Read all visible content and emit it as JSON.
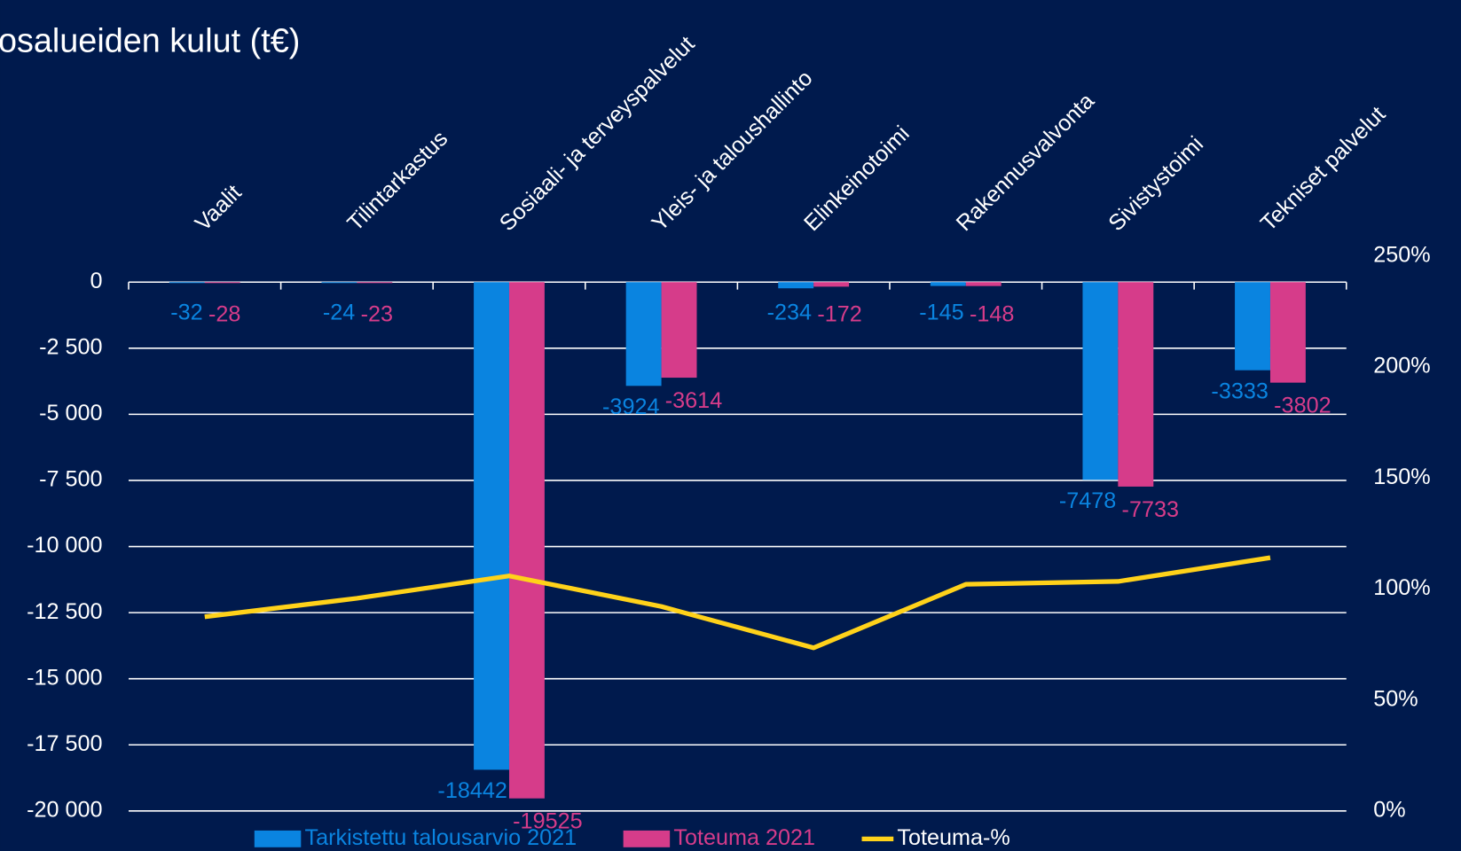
{
  "chart_data": {
    "type": "bar",
    "title": "osalueiden kulut (t€)",
    "categories": [
      "Vaalit",
      "Tilintarkastus",
      "Sosiaali- ja terveyspalvelut",
      "Yleis- ja taloushallinto",
      "Elinkeinotoimi",
      "Rakennusvalvonta",
      "Sivistystoimi",
      "Tekniset palvelut"
    ],
    "series": [
      {
        "name": "Tarkistettu talousarvio 2021",
        "color": "#0a84e0",
        "values": [
          -32,
          -24,
          -18442,
          -3924,
          -234,
          -145,
          -7478,
          -3333
        ]
      },
      {
        "name": "Toteuma 2021",
        "color": "#d63c8a",
        "values": [
          -28,
          -23,
          -19525,
          -3614,
          -172,
          -148,
          -7733,
          -3802
        ]
      },
      {
        "name": "Toteuma-%",
        "color": "#ffd21a",
        "type": "line",
        "axis": "y2",
        "values": [
          87.5,
          95.8,
          105.9,
          92.1,
          73.5,
          102.1,
          103.4,
          114.1
        ]
      }
    ],
    "ylim": [
      -20000,
      0
    ],
    "yticks": [
      {
        "value": 0,
        "label": "0"
      },
      {
        "value": -2500,
        "label": "-2 500"
      },
      {
        "value": -5000,
        "label": "-5 000"
      },
      {
        "value": -7500,
        "label": "-7 500"
      },
      {
        "value": -10000,
        "label": "-10 000"
      },
      {
        "value": -12500,
        "label": "-12 500"
      },
      {
        "value": -15000,
        "label": "-15 000"
      },
      {
        "value": -17500,
        "label": "-17 500"
      },
      {
        "value": -20000,
        "label": "-20 000"
      }
    ],
    "y2lim": [
      0,
      250
    ],
    "y2ticks": [
      {
        "value": 0,
        "label": "0%"
      },
      {
        "value": 50,
        "label": "50%"
      },
      {
        "value": 100,
        "label": "100%"
      },
      {
        "value": 150,
        "label": "150%"
      },
      {
        "value": 200,
        "label": "200%"
      },
      {
        "value": 250,
        "label": "250%"
      }
    ],
    "grid": true,
    "legend": "bottom"
  }
}
